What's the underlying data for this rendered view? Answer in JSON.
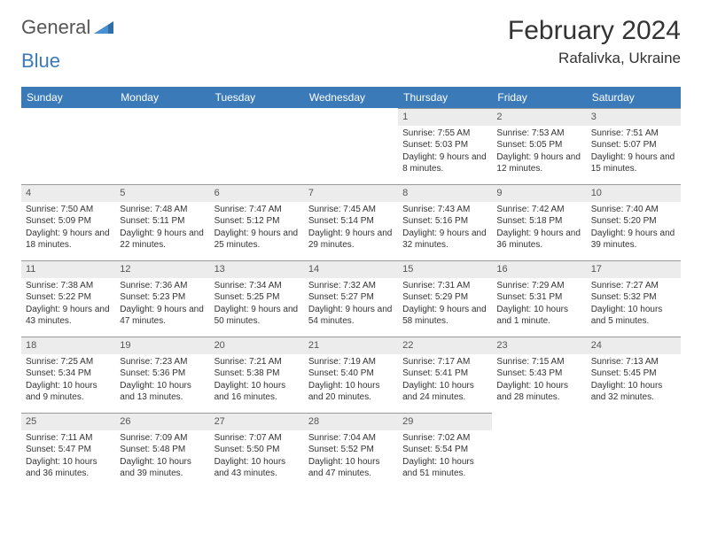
{
  "logo": {
    "part1": "General",
    "part2": "Blue"
  },
  "title": "February 2024",
  "location": "Rafalivka, Ukraine",
  "colors": {
    "header_bg": "#3a7ab8",
    "header_text": "#ffffff",
    "daynum_bg": "#ececec",
    "daynum_border": "#999999",
    "body_text": "#333333",
    "page_bg": "#ffffff"
  },
  "weekdays": [
    "Sunday",
    "Monday",
    "Tuesday",
    "Wednesday",
    "Thursday",
    "Friday",
    "Saturday"
  ],
  "weeks": [
    [
      null,
      null,
      null,
      null,
      {
        "n": "1",
        "sr": "7:55 AM",
        "ss": "5:03 PM",
        "dl": "9 hours and 8 minutes."
      },
      {
        "n": "2",
        "sr": "7:53 AM",
        "ss": "5:05 PM",
        "dl": "9 hours and 12 minutes."
      },
      {
        "n": "3",
        "sr": "7:51 AM",
        "ss": "5:07 PM",
        "dl": "9 hours and 15 minutes."
      }
    ],
    [
      {
        "n": "4",
        "sr": "7:50 AM",
        "ss": "5:09 PM",
        "dl": "9 hours and 18 minutes."
      },
      {
        "n": "5",
        "sr": "7:48 AM",
        "ss": "5:11 PM",
        "dl": "9 hours and 22 minutes."
      },
      {
        "n": "6",
        "sr": "7:47 AM",
        "ss": "5:12 PM",
        "dl": "9 hours and 25 minutes."
      },
      {
        "n": "7",
        "sr": "7:45 AM",
        "ss": "5:14 PM",
        "dl": "9 hours and 29 minutes."
      },
      {
        "n": "8",
        "sr": "7:43 AM",
        "ss": "5:16 PM",
        "dl": "9 hours and 32 minutes."
      },
      {
        "n": "9",
        "sr": "7:42 AM",
        "ss": "5:18 PM",
        "dl": "9 hours and 36 minutes."
      },
      {
        "n": "10",
        "sr": "7:40 AM",
        "ss": "5:20 PM",
        "dl": "9 hours and 39 minutes."
      }
    ],
    [
      {
        "n": "11",
        "sr": "7:38 AM",
        "ss": "5:22 PM",
        "dl": "9 hours and 43 minutes."
      },
      {
        "n": "12",
        "sr": "7:36 AM",
        "ss": "5:23 PM",
        "dl": "9 hours and 47 minutes."
      },
      {
        "n": "13",
        "sr": "7:34 AM",
        "ss": "5:25 PM",
        "dl": "9 hours and 50 minutes."
      },
      {
        "n": "14",
        "sr": "7:32 AM",
        "ss": "5:27 PM",
        "dl": "9 hours and 54 minutes."
      },
      {
        "n": "15",
        "sr": "7:31 AM",
        "ss": "5:29 PM",
        "dl": "9 hours and 58 minutes."
      },
      {
        "n": "16",
        "sr": "7:29 AM",
        "ss": "5:31 PM",
        "dl": "10 hours and 1 minute."
      },
      {
        "n": "17",
        "sr": "7:27 AM",
        "ss": "5:32 PM",
        "dl": "10 hours and 5 minutes."
      }
    ],
    [
      {
        "n": "18",
        "sr": "7:25 AM",
        "ss": "5:34 PM",
        "dl": "10 hours and 9 minutes."
      },
      {
        "n": "19",
        "sr": "7:23 AM",
        "ss": "5:36 PM",
        "dl": "10 hours and 13 minutes."
      },
      {
        "n": "20",
        "sr": "7:21 AM",
        "ss": "5:38 PM",
        "dl": "10 hours and 16 minutes."
      },
      {
        "n": "21",
        "sr": "7:19 AM",
        "ss": "5:40 PM",
        "dl": "10 hours and 20 minutes."
      },
      {
        "n": "22",
        "sr": "7:17 AM",
        "ss": "5:41 PM",
        "dl": "10 hours and 24 minutes."
      },
      {
        "n": "23",
        "sr": "7:15 AM",
        "ss": "5:43 PM",
        "dl": "10 hours and 28 minutes."
      },
      {
        "n": "24",
        "sr": "7:13 AM",
        "ss": "5:45 PM",
        "dl": "10 hours and 32 minutes."
      }
    ],
    [
      {
        "n": "25",
        "sr": "7:11 AM",
        "ss": "5:47 PM",
        "dl": "10 hours and 36 minutes."
      },
      {
        "n": "26",
        "sr": "7:09 AM",
        "ss": "5:48 PM",
        "dl": "10 hours and 39 minutes."
      },
      {
        "n": "27",
        "sr": "7:07 AM",
        "ss": "5:50 PM",
        "dl": "10 hours and 43 minutes."
      },
      {
        "n": "28",
        "sr": "7:04 AM",
        "ss": "5:52 PM",
        "dl": "10 hours and 47 minutes."
      },
      {
        "n": "29",
        "sr": "7:02 AM",
        "ss": "5:54 PM",
        "dl": "10 hours and 51 minutes."
      },
      null,
      null
    ]
  ],
  "labels": {
    "sunrise": "Sunrise:",
    "sunset": "Sunset:",
    "daylight": "Daylight:"
  }
}
